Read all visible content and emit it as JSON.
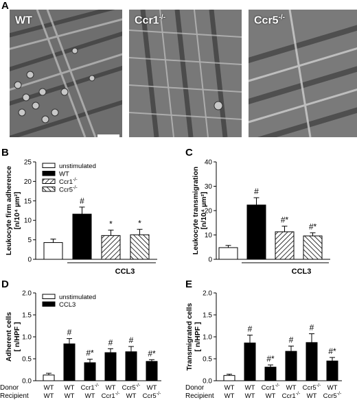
{
  "panels": {
    "A": "A",
    "B": "B",
    "C": "C",
    "D": "D",
    "E": "E"
  },
  "micrographs": [
    {
      "label": "WT",
      "sup": ""
    },
    {
      "label": "Ccr1",
      "sup": "-/-"
    },
    {
      "label": "Ccr5",
      "sup": "-/-"
    }
  ],
  "colors": {
    "bar_black": "#000000",
    "bar_white": "#ffffff",
    "hatch": "#000000"
  },
  "chart_data": [
    {
      "id": "B",
      "type": "bar",
      "ylabel_line1": "Leukocyte firm adherence",
      "ylabel_line2": "[n/10⁴ µm²]",
      "ylim": [
        0,
        25
      ],
      "yticks": [
        "0",
        "5",
        "10",
        "15",
        "20",
        "25"
      ],
      "categories": [
        "unstimulated",
        "WT",
        "Ccr1-/-",
        "Ccr5-/-"
      ],
      "values": [
        4.3,
        11.6,
        6.1,
        6.3
      ],
      "errors": [
        0.9,
        1.8,
        1.4,
        1.4
      ],
      "fills": [
        "white",
        "black",
        "hatch",
        "hatch-rev"
      ],
      "annotations": [
        "",
        "#",
        "*",
        "*"
      ],
      "group_label": "CCL3",
      "legend": [
        "unstimulated",
        "WT",
        "Ccr1-/-",
        "Ccr5-/-"
      ]
    },
    {
      "id": "C",
      "type": "bar",
      "ylabel_line1": "Leukocyte transmigration",
      "ylabel_line2": "[n/10⁴ µm²]",
      "ylim": [
        0,
        40
      ],
      "yticks": [
        "0",
        "10",
        "20",
        "30",
        "40"
      ],
      "categories": [
        "unstimulated",
        "WT",
        "Ccr1-/-",
        "Ccr5-/-"
      ],
      "values": [
        4.8,
        22.3,
        11.3,
        9.6
      ],
      "errors": [
        0.9,
        3.0,
        2.3,
        1.3
      ],
      "fills": [
        "white",
        "black",
        "hatch",
        "hatch-rev"
      ],
      "annotations": [
        "",
        "#",
        "#*",
        "#*"
      ],
      "group_label": "CCL3"
    },
    {
      "id": "D",
      "type": "bar",
      "ylabel_line1": "Adherent cells",
      "ylabel_line2": "[ n/HPF ]",
      "ylim": [
        0,
        2.0
      ],
      "yticks": [
        "0.0",
        "0.5",
        "1.0",
        "1.5",
        "2.0"
      ],
      "values": [
        0.13,
        0.84,
        0.41,
        0.64,
        0.66,
        0.44
      ],
      "errors": [
        0.04,
        0.12,
        0.08,
        0.09,
        0.12,
        0.04
      ],
      "fills": [
        "white",
        "black",
        "black",
        "black",
        "black",
        "black"
      ],
      "annotations": [
        "",
        "#",
        "#*",
        "#",
        "#",
        "#*"
      ],
      "legend": [
        "unstimulated",
        "CCL3"
      ],
      "row1_title": "Donor",
      "row2_title": "Recipient",
      "donor": [
        "WT",
        "WT",
        "Ccr1-/-",
        "WT",
        "Ccr5-/-",
        "WT"
      ],
      "recipient": [
        "WT",
        "WT",
        "WT",
        "Ccr1-/-",
        "WT",
        "Ccr5-/-"
      ]
    },
    {
      "id": "E",
      "type": "bar",
      "ylabel_line1": "Transmigrated cells",
      "ylabel_line2": "[ n/HPF ]",
      "ylim": [
        0,
        2.0
      ],
      "yticks": [
        "0.0",
        "0.5",
        "1.0",
        "1.5",
        "2.0"
      ],
      "values": [
        0.12,
        0.86,
        0.31,
        0.67,
        0.87,
        0.45
      ],
      "errors": [
        0.03,
        0.18,
        0.05,
        0.12,
        0.2,
        0.08
      ],
      "fills": [
        "white",
        "black",
        "black",
        "black",
        "black",
        "black"
      ],
      "annotations": [
        "",
        "#",
        "#*",
        "#",
        "#",
        "#*"
      ],
      "row1_title": "Donor",
      "row2_title": "Recipient",
      "donor": [
        "WT",
        "WT",
        "Ccr1-/-",
        "WT",
        "Ccr5-/-",
        "WT"
      ],
      "recipient": [
        "WT",
        "WT",
        "WT",
        "Ccr1-/-",
        "WT",
        "Ccr5-/-"
      ]
    }
  ]
}
